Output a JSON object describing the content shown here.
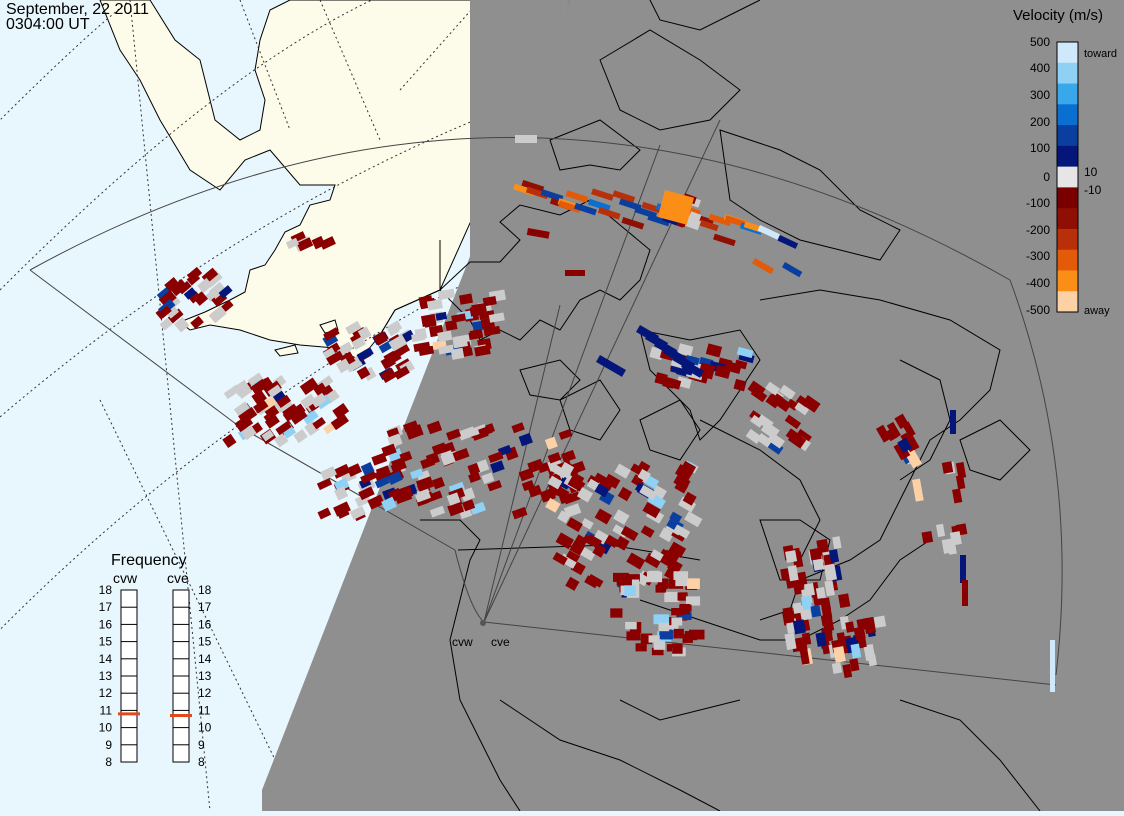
{
  "title": {
    "date": "September, 22 2011",
    "time": "0304:00 UT"
  },
  "colorbar": {
    "title": "Velocity (m/s)",
    "ticks": [
      "500",
      "400",
      "300",
      "200",
      "100",
      "10",
      "0",
      "-10",
      "-100",
      "-200",
      "-300",
      "-400",
      "-500"
    ],
    "toward_label": "toward",
    "away_label": "away",
    "colors": [
      "#cfe9fb",
      "#8fd1f5",
      "#38a8ea",
      "#0a6fd0",
      "#0a3fa0",
      "#05167a",
      "#e6e6e6",
      "#7a0000",
      "#8f0f05",
      "#b8300a",
      "#e35a08",
      "#fb8e16",
      "#fdd1a6"
    ]
  },
  "frequency": {
    "title": "Frequency",
    "units_max": 18,
    "units_min": 8,
    "labels": [
      "18",
      "17",
      "16",
      "15",
      "14",
      "13",
      "12",
      "11",
      "10",
      "9",
      "8"
    ],
    "radars": [
      {
        "name": "cvw",
        "value_mhz": 10.8
      },
      {
        "name": "cve",
        "value_mhz": 10.7
      }
    ]
  },
  "radar_sites": [
    "cvw",
    "cve"
  ],
  "colors": {
    "ocean": "#e8f6fd",
    "land_day": "#fdfbea",
    "night": "#8f8f8f",
    "ground_scatter": "#c8c8c8",
    "frequency_marker": "#e04a1c"
  }
}
